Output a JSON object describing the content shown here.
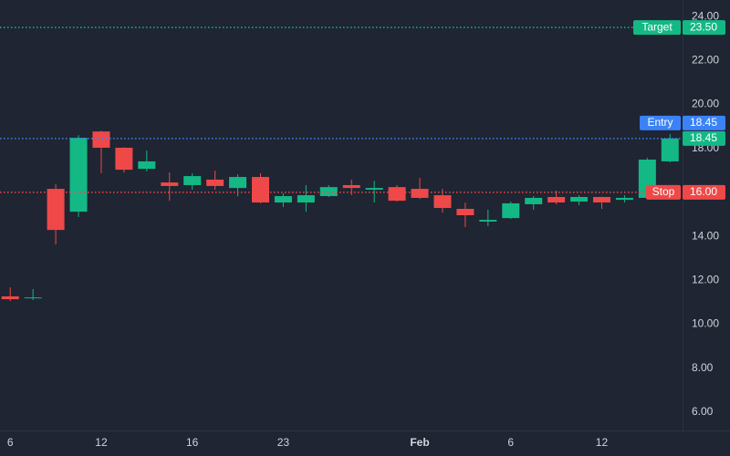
{
  "chart_data": {
    "type": "candlestick",
    "categories": [
      "6",
      null,
      null,
      null,
      "12",
      null,
      null,
      null,
      "16",
      null,
      null,
      null,
      "23",
      null,
      null,
      null,
      null,
      null,
      "Feb",
      null,
      null,
      null,
      "6",
      null,
      null,
      null,
      "12",
      null,
      null,
      null
    ],
    "open": [
      11.27,
      11.2,
      16.16,
      15.12,
      18.77,
      18.03,
      17.07,
      16.45,
      16.33,
      16.58,
      16.2,
      16.7,
      15.54,
      15.54,
      15.83,
      16.33,
      16.12,
      16.24,
      16.16,
      15.87,
      15.25,
      14.67,
      14.83,
      15.46,
      15.79,
      15.58,
      15.79,
      15.66,
      15.75,
      17.41
    ],
    "high": [
      11.68,
      11.6,
      16.37,
      18.6,
      18.8,
      18.05,
      17.9,
      16.91,
      16.87,
      16.99,
      16.82,
      16.87,
      15.95,
      16.33,
      16.33,
      16.58,
      16.53,
      16.33,
      16.66,
      16.16,
      15.54,
      15.21,
      15.58,
      15.83,
      16.08,
      15.87,
      15.8,
      15.87,
      17.57,
      18.65
    ],
    "low": [
      11.06,
      11.1,
      13.63,
      14.88,
      16.87,
      16.9,
      16.95,
      15.62,
      16.12,
      16.12,
      15.83,
      15.5,
      15.33,
      15.12,
      15.79,
      15.87,
      15.54,
      15.58,
      15.7,
      15.08,
      14.42,
      14.46,
      14.79,
      15.21,
      15.46,
      15.42,
      15.25,
      15.54,
      15.7,
      17.36
    ],
    "close": [
      11.14,
      11.22,
      14.29,
      18.48,
      18.03,
      17.03,
      17.41,
      16.29,
      16.74,
      16.29,
      16.7,
      15.54,
      15.83,
      15.87,
      16.24,
      16.2,
      16.2,
      15.62,
      15.75,
      15.29,
      14.96,
      14.75,
      15.5,
      15.75,
      15.54,
      15.79,
      15.54,
      15.75,
      17.49,
      18.45
    ],
    "up_color": "#14b885",
    "down_color": "#ef4848",
    "ylim": [
      5.17,
      24.75
    ],
    "yticks": [
      {
        "value": 6,
        "label": "6.00"
      },
      {
        "value": 8,
        "label": "8.00"
      },
      {
        "value": 10,
        "label": "10.00"
      },
      {
        "value": 12,
        "label": "12.00"
      },
      {
        "value": 14,
        "label": "14.00"
      },
      {
        "value": 16,
        "label": "16.00"
      },
      {
        "value": 18,
        "label": "18.00"
      },
      {
        "value": 20,
        "label": "20.00"
      },
      {
        "value": 22,
        "label": "22.00"
      },
      {
        "value": 24,
        "label": "24.00"
      }
    ],
    "price_lines": [
      {
        "name": "Target",
        "value": 23.5,
        "value_label": "23.50",
        "color": "#14b885"
      },
      {
        "name": "Entry",
        "value": 18.45,
        "value_label": "18.45",
        "color": "#3b82f6"
      },
      {
        "name": "Stop",
        "value": 16,
        "value_label": "16.00",
        "color": "#ef4848"
      }
    ]
  }
}
